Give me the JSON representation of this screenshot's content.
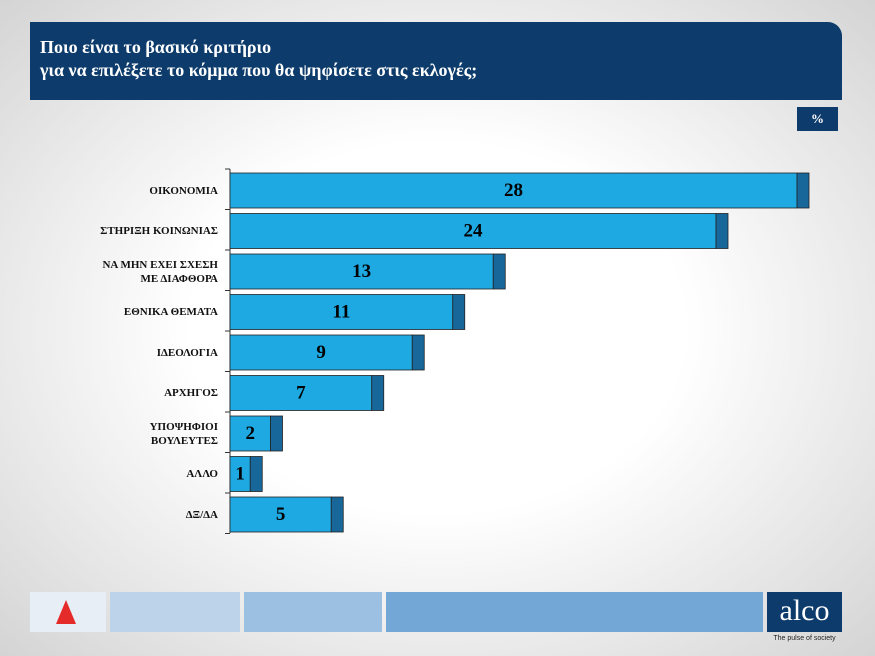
{
  "header": {
    "title": "Ποιο είναι το βασικό κριτήριο\nγια να επιλέξετε το κόμμα που θα ψηφίσετε στις εκλογές;",
    "unit": "%"
  },
  "chart_data": {
    "type": "bar",
    "orientation": "horizontal",
    "color": "#1ea9e3",
    "side_color": "#17679a",
    "categories": [
      "ΟΙΚΟΝΟΜΙΑ",
      "ΣΤΗΡΙΞΗ ΚΟΙΝΩΝΙΑΣ",
      "ΝΑ ΜΗΝ ΕΧΕΙ ΣΧΕΣΗ\nΜΕ ΔΙΑΦΘΟΡΑ",
      "ΕΘΝΙΚΑ ΘΕΜΑΤΑ",
      "ΙΔΕΟΛΟΓΙΑ",
      "ΑΡΧΗΓΟΣ",
      "ΥΠΟΨΗΦΙΟΙ\nΒΟΥΛΕΥΤΕΣ",
      "ΑΛΛΟ",
      "ΔΞ/ΔΑ"
    ],
    "values": [
      28,
      24,
      13,
      11,
      9,
      7,
      2,
      1,
      5
    ]
  },
  "footer": {
    "brand": "alco",
    "tagline": "The pulse of society"
  }
}
